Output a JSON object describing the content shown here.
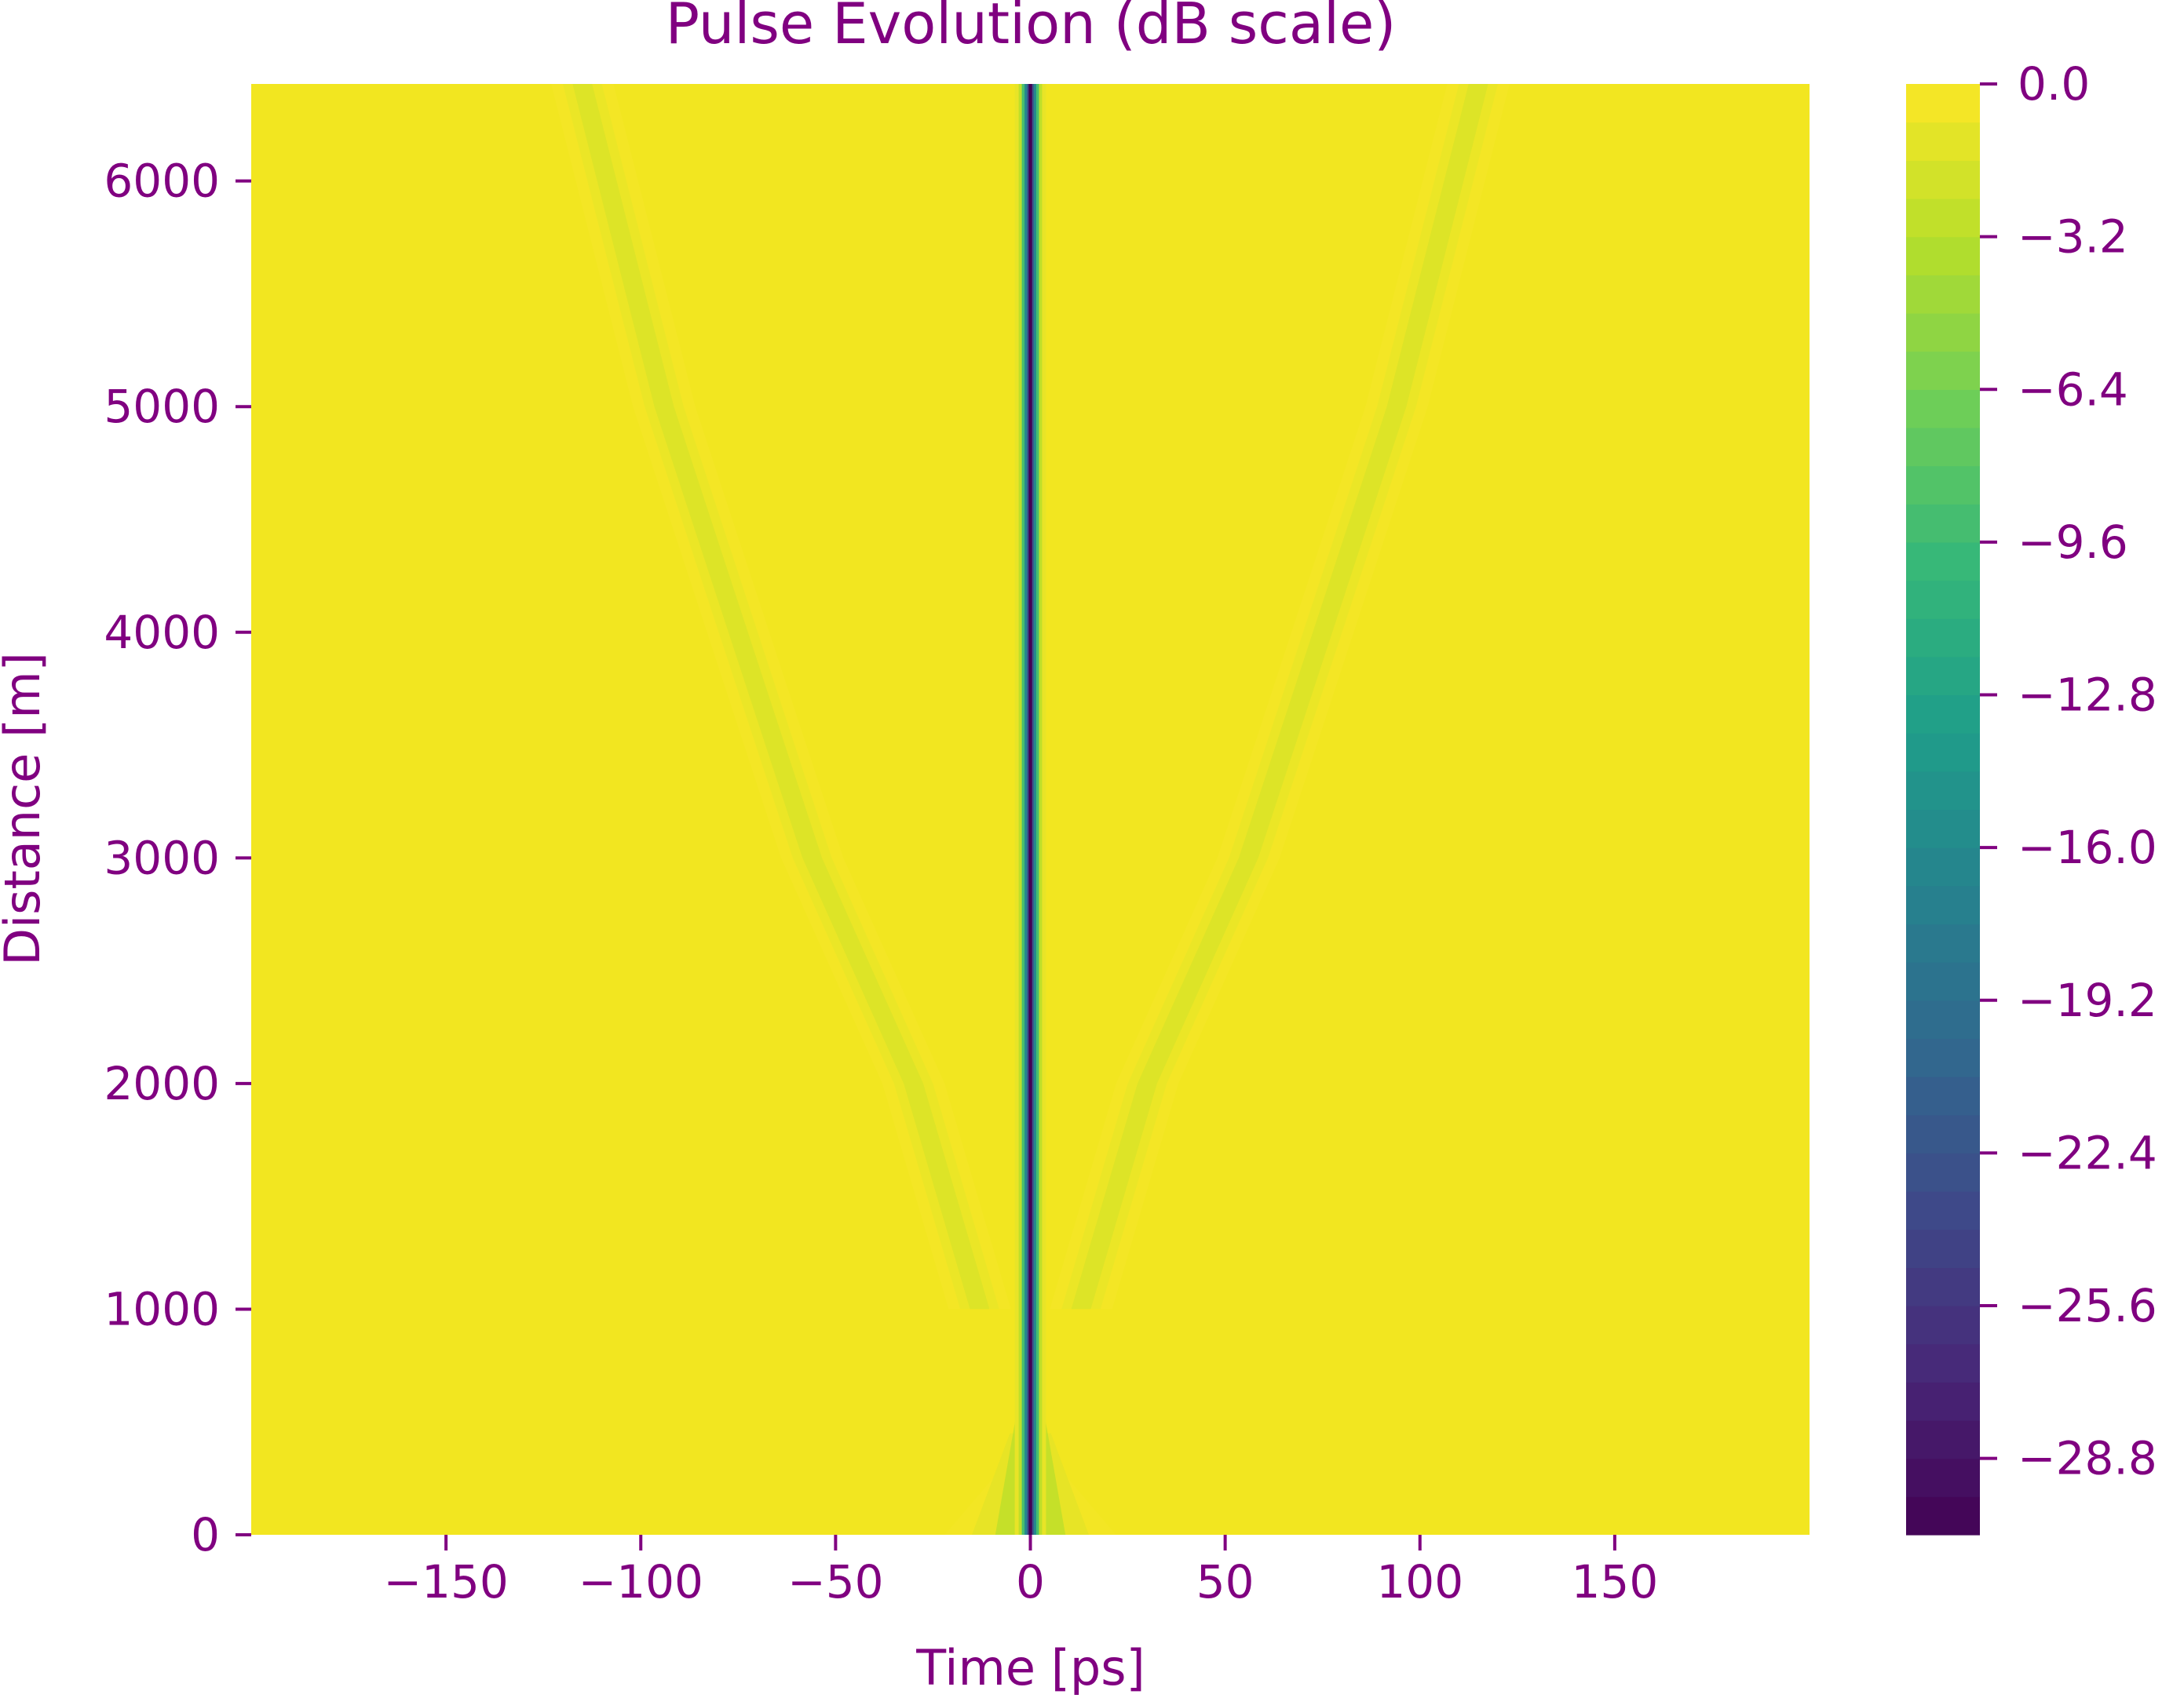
{
  "chart_data": {
    "type": "heatmap",
    "title": "Pulse Evolution (dB scale)",
    "xlabel": "Time [ps]",
    "ylabel": "Distance [m]",
    "xlim": [
      -200,
      200
    ],
    "ylim": [
      0,
      6430
    ],
    "x_ticks": [
      -150,
      -100,
      -50,
      0,
      50,
      100,
      150
    ],
    "x_tick_labels": [
      "−150",
      "−100",
      "−50",
      "0",
      "50",
      "100",
      "150"
    ],
    "y_ticks": [
      0,
      1000,
      2000,
      3000,
      4000,
      5000,
      6000
    ],
    "y_tick_labels": [
      "0",
      "1000",
      "2000",
      "3000",
      "4000",
      "5000",
      "6000"
    ],
    "colorbar": {
      "colormap": "viridis",
      "range": [
        -30.4,
        0.0
      ],
      "levels": 38,
      "ticks": [
        0.0,
        -3.2,
        -6.4,
        -9.6,
        -12.8,
        -16.0,
        -19.2,
        -22.4,
        -25.6,
        -28.8
      ],
      "tick_labels": [
        "0.0",
        "−3.2",
        "−6.4",
        "−9.6",
        "−12.8",
        "−16.0",
        "−19.2",
        "−22.4",
        "−25.6",
        "−28.8"
      ]
    },
    "features": [
      {
        "kind": "central null",
        "time_ps": 0,
        "min_db": -30.4
      },
      {
        "kind": "side lobe",
        "time_ps_at_distance": [
          [
            -13,
            1000
          ],
          [
            -30,
            2000
          ],
          [
            -56,
            3000
          ],
          [
            -75,
            4000
          ],
          [
            -94,
            5000
          ],
          [
            -115,
            6430
          ]
        ],
        "min_db": -1.6
      },
      {
        "kind": "side lobe",
        "time_ps_at_distance": [
          [
            13,
            1000
          ],
          [
            30,
            2000
          ],
          [
            56,
            3000
          ],
          [
            75,
            4000
          ],
          [
            94,
            5000
          ],
          [
            115,
            6430
          ]
        ],
        "min_db": -1.6
      }
    ]
  },
  "style": {
    "text_color": "#800080",
    "viridis_stops": [
      "#440154",
      "#482878",
      "#3e4989",
      "#31688e",
      "#26828e",
      "#1f9e89",
      "#35b779",
      "#6ece58",
      "#b5de2b",
      "#fde725"
    ]
  }
}
